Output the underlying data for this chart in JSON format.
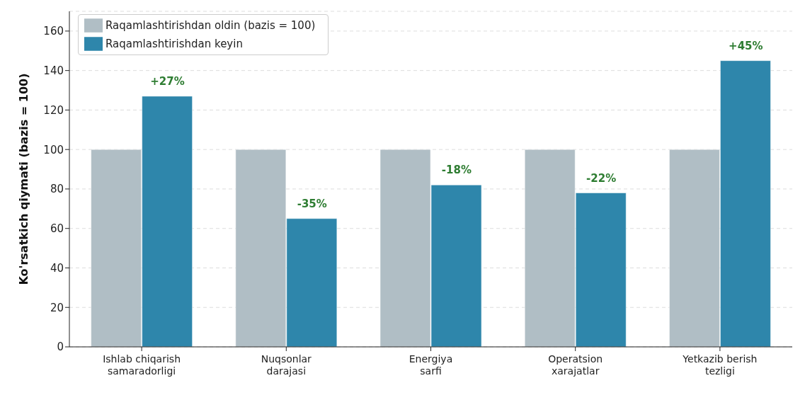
{
  "chart_data": {
    "type": "bar",
    "ylabel": "Ko'rsatkich qiymati (bazis = 100)",
    "categories": [
      "Ishlab chiqarish\nsamaradorligi",
      "Nuqsonlar\ndarajasi",
      "Energiya\nsarfi",
      "Operatsion\nxarajatlar",
      "Yetkazib berish\ntezligi"
    ],
    "series": [
      {
        "name": "Raqamlashtirishdan oldin (bazis = 100)",
        "color": "#b0bec5",
        "values": [
          100,
          100,
          100,
          100,
          100
        ]
      },
      {
        "name": "Raqamlashtirishdan keyin",
        "color": "#2e86ab",
        "values": [
          127,
          65,
          82,
          78,
          145
        ]
      }
    ],
    "annotations": [
      {
        "text": "+27%",
        "x": "Ishlab chiqarish\nsamaradorligi",
        "y": 127
      },
      {
        "text": "-35%",
        "x": "Nuqsonlar\ndarajasi",
        "y": 65
      },
      {
        "text": "-18%",
        "x": "Energiya\nsarfi",
        "y": 82
      },
      {
        "text": "-22%",
        "x": "Operatsion\nxarajatlar",
        "y": 78
      },
      {
        "text": "+45%",
        "x": "Yetkazib berish\ntezligi",
        "y": 145
      }
    ],
    "ylim": [
      0,
      170
    ],
    "yticks": [
      0,
      20,
      40,
      60,
      80,
      100,
      120,
      140,
      160
    ],
    "grid": "y",
    "legend": "top left"
  }
}
